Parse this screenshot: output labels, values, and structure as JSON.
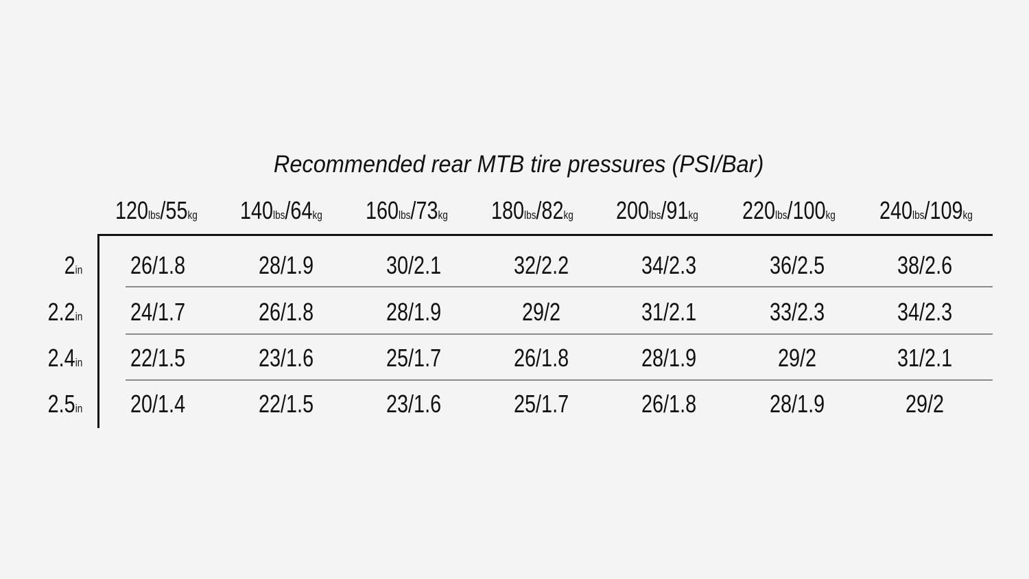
{
  "chart_data": {
    "type": "table",
    "title": "Recommended rear MTB tire pressures (PSI/Bar)",
    "column_unit_labels": {
      "primary": "lbs",
      "secondary": "kg"
    },
    "row_unit_label": "in",
    "columns": [
      {
        "lbs": "120",
        "kg": "55"
      },
      {
        "lbs": "140",
        "kg": "64"
      },
      {
        "lbs": "160",
        "kg": "73"
      },
      {
        "lbs": "180",
        "kg": "82"
      },
      {
        "lbs": "200",
        "kg": "91"
      },
      {
        "lbs": "220",
        "kg": "100"
      },
      {
        "lbs": "240",
        "kg": "109"
      }
    ],
    "rows": [
      {
        "width": "2",
        "values": [
          "26/1.8",
          "28/1.9",
          "30/2.1",
          "32/2.2",
          "34/2.3",
          "36/2.5",
          "38/2.6"
        ]
      },
      {
        "width": "2.2",
        "values": [
          "24/1.7",
          "26/1.8",
          "28/1.9",
          "29/2",
          "31/2.1",
          "33/2.3",
          "34/2.3"
        ]
      },
      {
        "width": "2.4",
        "values": [
          "22/1.5",
          "23/1.6",
          "25/1.7",
          "26/1.8",
          "28/1.9",
          "29/2",
          "31/2.1"
        ]
      },
      {
        "width": "2.5",
        "values": [
          "20/1.4",
          "22/1.5",
          "23/1.6",
          "25/1.7",
          "26/1.8",
          "28/1.9",
          "29/2"
        ]
      }
    ],
    "colors": {
      "background": "#f4f4f4",
      "text": "#111111",
      "row_divider": "#8a8a8a"
    }
  }
}
